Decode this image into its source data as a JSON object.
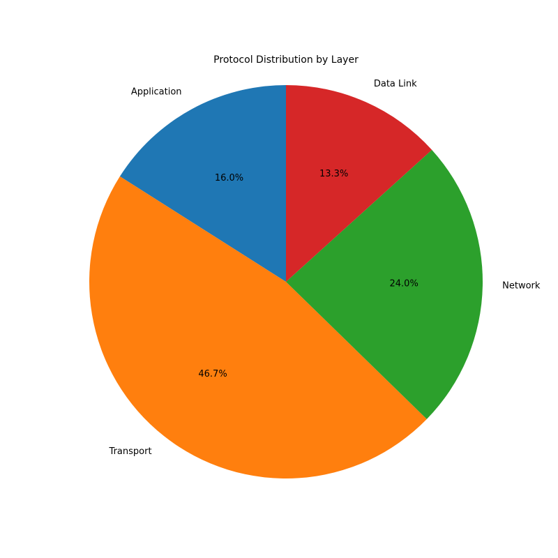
{
  "chart_data": {
    "type": "pie",
    "title": "Protocol Distribution by Layer",
    "start_angle_deg": 90,
    "direction": "counterclockwise",
    "categories": [
      "Application",
      "Transport",
      "Network",
      "Data Link"
    ],
    "values": [
      16.0,
      46.7,
      24.0,
      13.3
    ],
    "percent_labels": [
      "16.0%",
      "46.7%",
      "24.0%",
      "13.3%"
    ],
    "colors": [
      "#1f77b4",
      "#ff7f0e",
      "#2ca02c",
      "#d62728"
    ]
  }
}
